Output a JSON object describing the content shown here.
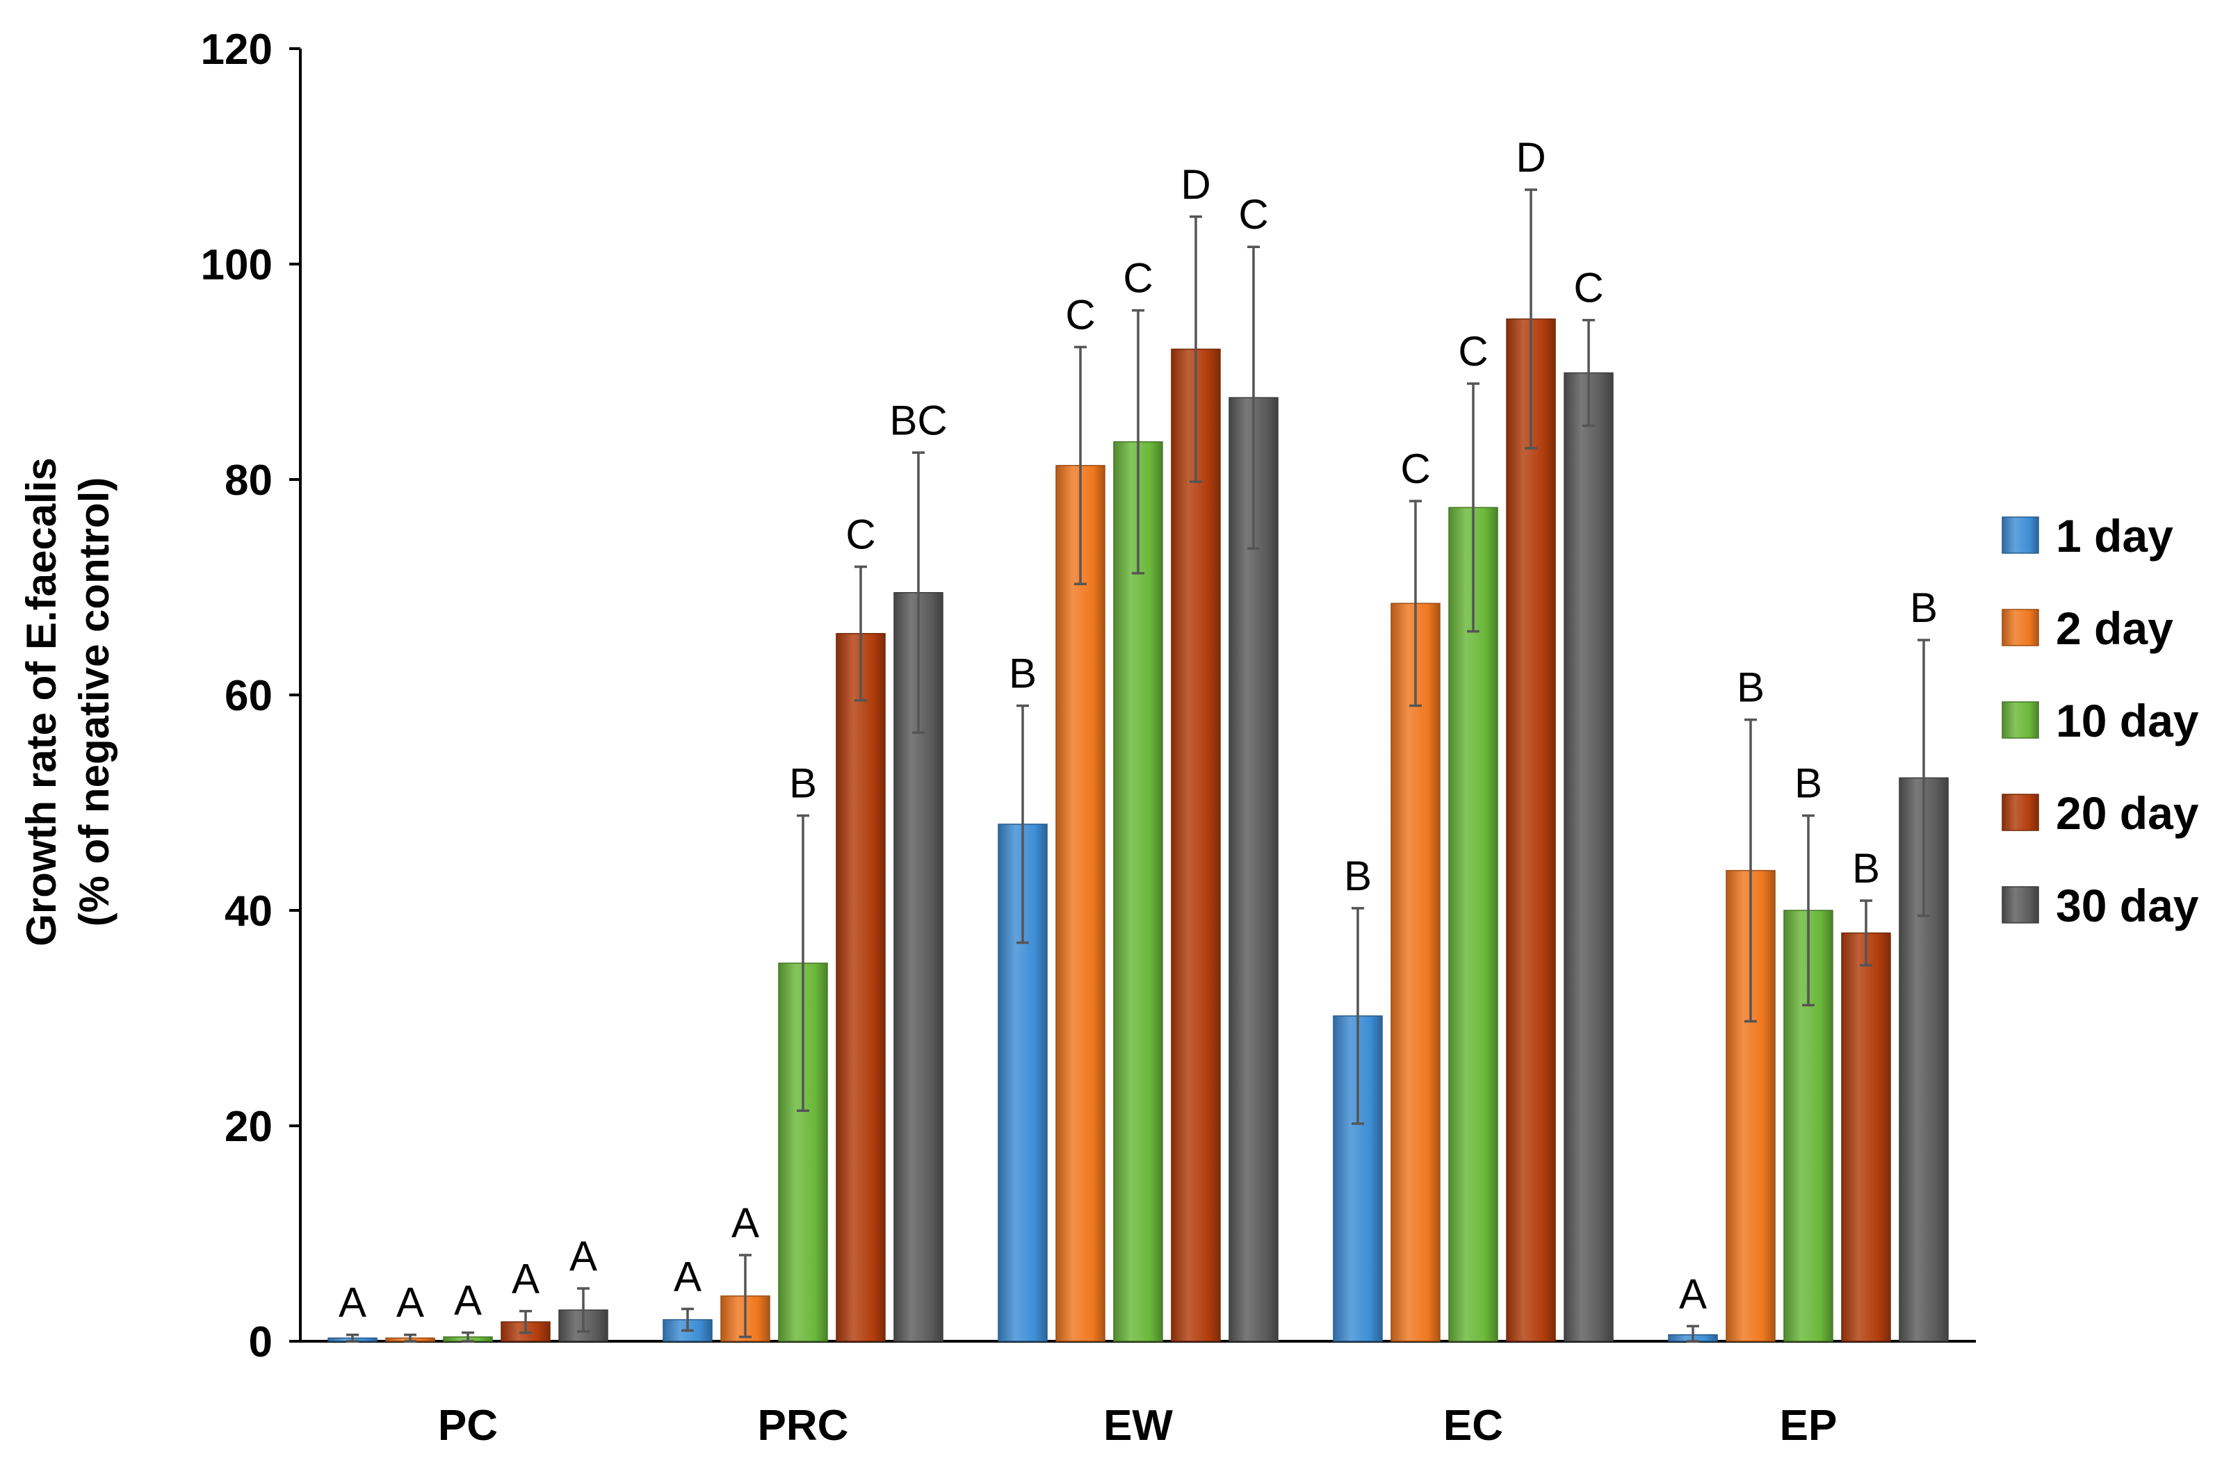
{
  "chart_data": {
    "type": "bar",
    "title": "",
    "xlabel": "",
    "ylabel_lines": [
      "Growth rate of E.faecalis",
      "(% of negative control)"
    ],
    "ylim": [
      0,
      120
    ],
    "yticks": [
      "0",
      "20",
      "40",
      "60",
      "80",
      "100",
      "120"
    ],
    "ytick_values": [
      0,
      20,
      40,
      60,
      80,
      100,
      120
    ],
    "categories": [
      "PC",
      "PRC",
      "EW",
      "EC",
      "EP"
    ],
    "legend_position": "right",
    "series": [
      {
        "name": "1 day",
        "color": "#3e8ed6",
        "values": [
          0.3,
          2.0,
          48.0,
          30.2,
          0.6
        ],
        "errors": [
          0.3,
          1.0,
          11.0,
          10.0,
          0.8
        ],
        "labels": [
          "A",
          "A",
          "B",
          "B",
          "A"
        ]
      },
      {
        "name": "2 day",
        "color": "#f0781f",
        "values": [
          0.3,
          4.2,
          81.3,
          68.5,
          43.7
        ],
        "errors": [
          0.3,
          3.8,
          11.0,
          9.5,
          14.0
        ],
        "labels": [
          "A",
          "A",
          "C",
          "C",
          "B"
        ]
      },
      {
        "name": "10 day",
        "color": "#6ab83a",
        "values": [
          0.4,
          35.1,
          83.5,
          77.4,
          40.0
        ],
        "errors": [
          0.4,
          13.7,
          12.2,
          11.5,
          8.8
        ],
        "labels": [
          "A",
          "B",
          "C",
          "C",
          "B"
        ]
      },
      {
        "name": "20 day",
        "color": "#b23d0c",
        "values": [
          1.8,
          65.7,
          92.1,
          94.9,
          37.9
        ],
        "errors": [
          1.0,
          6.2,
          12.3,
          12.0,
          3.0
        ],
        "labels": [
          "A",
          "C",
          "D",
          "D",
          "B"
        ]
      },
      {
        "name": "30 day",
        "color": "#5c5c5c",
        "values": [
          2.9,
          69.5,
          87.6,
          89.9,
          52.3
        ],
        "errors": [
          2.0,
          13.0,
          14.0,
          4.9,
          12.8
        ],
        "labels": [
          "A",
          "BC",
          "C",
          "C",
          "B"
        ]
      }
    ]
  }
}
